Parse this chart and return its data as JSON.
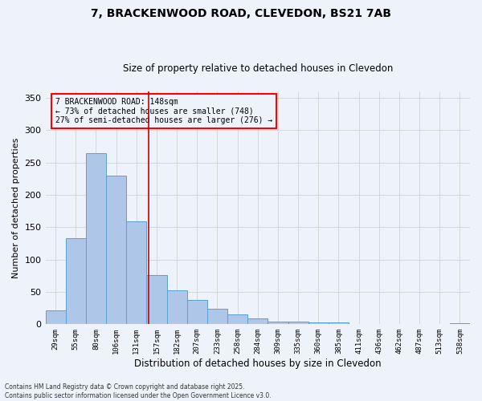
{
  "title_line1": "7, BRACKENWOOD ROAD, CLEVEDON, BS21 7AB",
  "title_line2": "Size of property relative to detached houses in Clevedon",
  "xlabel": "Distribution of detached houses by size in Clevedon",
  "ylabel": "Number of detached properties",
  "categories": [
    "29sqm",
    "55sqm",
    "80sqm",
    "106sqm",
    "131sqm",
    "157sqm",
    "182sqm",
    "207sqm",
    "233sqm",
    "258sqm",
    "284sqm",
    "309sqm",
    "335sqm",
    "360sqm",
    "385sqm",
    "411sqm",
    "436sqm",
    "462sqm",
    "487sqm",
    "513sqm",
    "538sqm"
  ],
  "values": [
    22,
    133,
    265,
    230,
    159,
    76,
    53,
    37,
    24,
    15,
    9,
    4,
    4,
    3,
    3,
    0,
    1,
    0,
    0,
    0,
    2
  ],
  "bar_color": "#aec6e8",
  "bar_edge_color": "#5a9fd4",
  "annotation_box_text": "7 BRACKENWOOD ROAD: 148sqm\n← 73% of detached houses are smaller (748)\n27% of semi-detached houses are larger (276) →",
  "vline_x": 4.62,
  "vline_color": "#cc0000",
  "ylim": [
    0,
    360
  ],
  "yticks": [
    0,
    50,
    100,
    150,
    200,
    250,
    300,
    350
  ],
  "grid_color": "#cccccc",
  "bg_color": "#eef2fb",
  "footer_line1": "Contains HM Land Registry data © Crown copyright and database right 2025.",
  "footer_line2": "Contains public sector information licensed under the Open Government Licence v3.0."
}
